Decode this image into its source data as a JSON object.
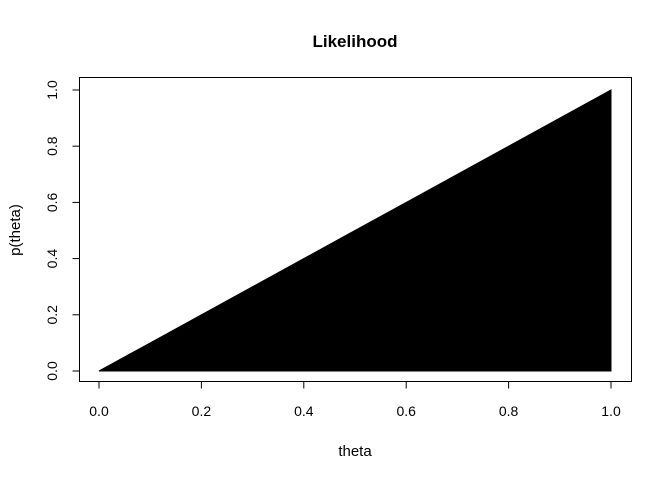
{
  "chart_data": {
    "type": "area",
    "title": "Likelihood",
    "xlabel": "theta",
    "ylabel": "p(theta)",
    "xlim": [
      0.0,
      1.0
    ],
    "ylim": [
      0.0,
      1.0
    ],
    "x_ticks": [
      0.0,
      0.2,
      0.4,
      0.6,
      0.8,
      1.0
    ],
    "x_tick_labels": [
      "0.0",
      "0.2",
      "0.4",
      "0.6",
      "0.8",
      "1.0"
    ],
    "y_ticks": [
      0.0,
      0.2,
      0.4,
      0.6,
      0.8,
      1.0
    ],
    "y_tick_labels": [
      "0.0",
      "0.2",
      "0.4",
      "0.6",
      "0.8",
      "1.0"
    ],
    "grid": false,
    "fill_color": "#000000",
    "series": [
      {
        "x": [
          0.0,
          0.1,
          0.2,
          0.3,
          0.4,
          0.5,
          0.6,
          0.7,
          0.8,
          0.9,
          1.0
        ],
        "y": [
          0.0,
          0.1,
          0.2,
          0.3,
          0.4,
          0.5,
          0.6,
          0.7,
          0.8,
          0.9,
          1.0
        ]
      }
    ]
  }
}
